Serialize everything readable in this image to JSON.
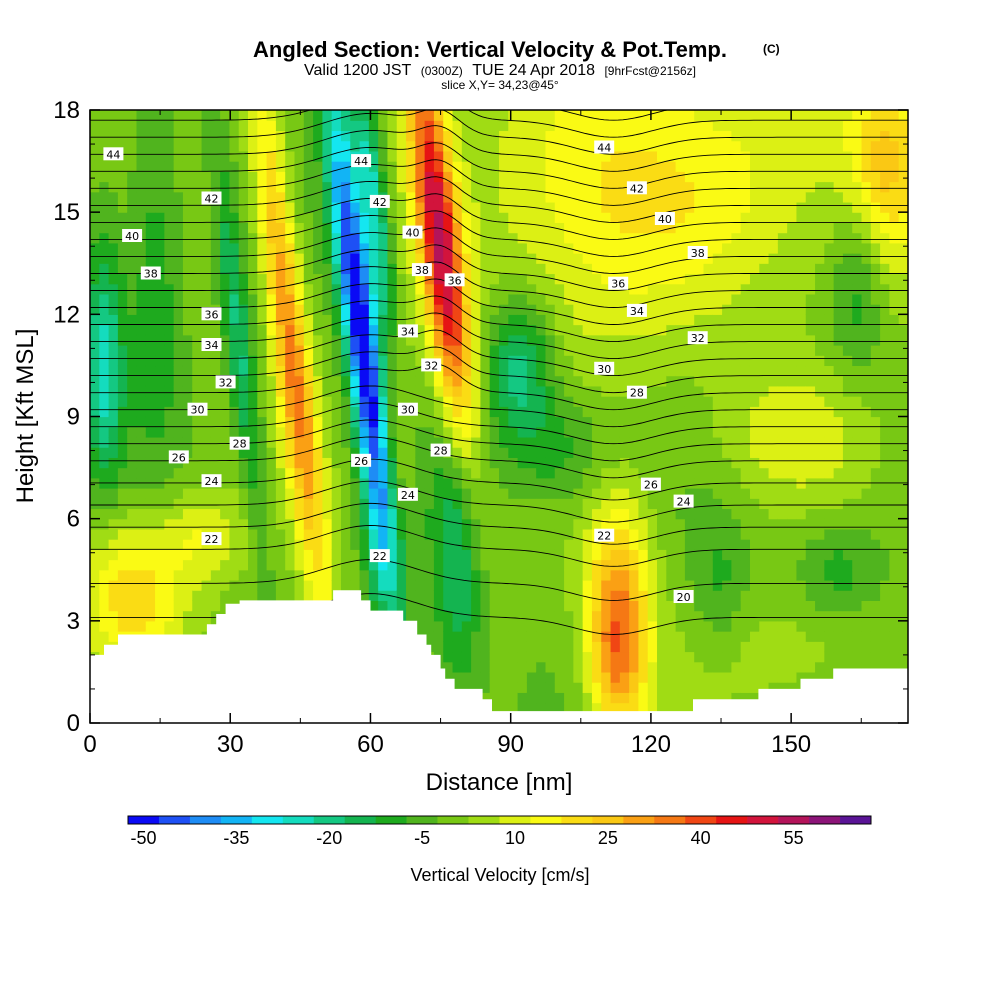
{
  "chart_data": {
    "type": "heatmap",
    "title": "Angled Section: Vertical Velocity & Pot.Temp.",
    "title_units": "(C)",
    "subtitle": {
      "prefix": "Valid 1200 JST",
      "utc": "(0300Z)",
      "date": "TUE 24 Apr 2018",
      "forecast": "[9hrFcst@2156z]"
    },
    "slice_label": "slice X,Y= 34,23@45°",
    "xlabel": "Distance [nm]",
    "ylabel": "Height [Kft MSL]",
    "xlim": [
      0,
      175
    ],
    "ylim": [
      0,
      18
    ],
    "x_ticks": [
      "0",
      "30",
      "60",
      "90",
      "120",
      "150"
    ],
    "y_ticks": [
      "0",
      "3",
      "6",
      "9",
      "12",
      "15",
      "18"
    ],
    "grid": false,
    "colorbar": {
      "title": "Vertical Velocity [cm/s]",
      "levels": [
        -50,
        -45,
        -40,
        -35,
        -30,
        -25,
        -20,
        -15,
        -10,
        -5,
        0,
        5,
        10,
        15,
        20,
        25,
        30,
        35,
        40,
        45,
        50,
        55,
        60,
        65
      ],
      "colors": [
        "#0a0af5",
        "#1e50f5",
        "#1e8cf5",
        "#12b4f5",
        "#14e6f0",
        "#14dcbe",
        "#14c882",
        "#14b450",
        "#1eaa1e",
        "#50b41e",
        "#78c814",
        "#a0dc14",
        "#dcf014",
        "#fafa14",
        "#fadc14",
        "#fac814",
        "#faa014",
        "#f57814",
        "#f04614",
        "#e61414",
        "#d2143c",
        "#b4145a",
        "#8c1478",
        "#5a1496"
      ],
      "tick_labels": [
        "-50",
        "-35",
        "-20",
        "-5",
        "10",
        "25",
        "40",
        "55"
      ]
    },
    "series": [
      {
        "name": "Potential temperature contours (C)",
        "values": [
          20,
          22,
          24,
          26,
          28,
          30,
          32,
          34,
          36,
          38,
          40,
          42,
          44
        ]
      }
    ],
    "contour_labels": [
      {
        "text": "44",
        "x": 5,
        "y": 16.7
      },
      {
        "text": "42",
        "x": 26,
        "y": 15.4
      },
      {
        "text": "40",
        "x": 9,
        "y": 14.3
      },
      {
        "text": "38",
        "x": 13,
        "y": 13.2
      },
      {
        "text": "36",
        "x": 26,
        "y": 12.0
      },
      {
        "text": "34",
        "x": 26,
        "y": 11.1
      },
      {
        "text": "32",
        "x": 29,
        "y": 10.0
      },
      {
        "text": "30",
        "x": 23,
        "y": 9.2
      },
      {
        "text": "28",
        "x": 32,
        "y": 8.2
      },
      {
        "text": "26",
        "x": 19,
        "y": 7.8
      },
      {
        "text": "24",
        "x": 26,
        "y": 7.1
      },
      {
        "text": "22",
        "x": 26,
        "y": 5.4
      },
      {
        "text": "44",
        "x": 58,
        "y": 16.5
      },
      {
        "text": "42",
        "x": 62,
        "y": 15.3
      },
      {
        "text": "40",
        "x": 69,
        "y": 14.4
      },
      {
        "text": "38",
        "x": 71,
        "y": 13.3
      },
      {
        "text": "36",
        "x": 78,
        "y": 13.0
      },
      {
        "text": "34",
        "x": 68,
        "y": 11.5
      },
      {
        "text": "32",
        "x": 73,
        "y": 10.5
      },
      {
        "text": "30",
        "x": 68,
        "y": 9.2
      },
      {
        "text": "28",
        "x": 75,
        "y": 8.0
      },
      {
        "text": "26",
        "x": 58,
        "y": 7.7
      },
      {
        "text": "24",
        "x": 68,
        "y": 6.7
      },
      {
        "text": "22",
        "x": 62,
        "y": 4.9
      },
      {
        "text": "44",
        "x": 110,
        "y": 16.9
      },
      {
        "text": "42",
        "x": 117,
        "y": 15.7
      },
      {
        "text": "40",
        "x": 123,
        "y": 14.8
      },
      {
        "text": "38",
        "x": 130,
        "y": 13.8
      },
      {
        "text": "36",
        "x": 113,
        "y": 12.9
      },
      {
        "text": "34",
        "x": 117,
        "y": 12.1
      },
      {
        "text": "32",
        "x": 130,
        "y": 11.3
      },
      {
        "text": "30",
        "x": 110,
        "y": 10.4
      },
      {
        "text": "28",
        "x": 117,
        "y": 9.7
      },
      {
        "text": "26",
        "x": 120,
        "y": 7.0
      },
      {
        "text": "24",
        "x": 127,
        "y": 6.5
      },
      {
        "text": "22",
        "x": 110,
        "y": 5.5
      },
      {
        "text": "20",
        "x": 127,
        "y": 3.7
      }
    ],
    "terrain": [
      [
        0,
        2.0
      ],
      [
        3,
        2.0
      ],
      [
        3,
        2.3
      ],
      [
        6,
        2.3
      ],
      [
        6,
        2.6
      ],
      [
        25,
        2.6
      ],
      [
        25,
        2.9
      ],
      [
        27,
        2.9
      ],
      [
        27,
        3.2
      ],
      [
        29,
        3.2
      ],
      [
        29,
        3.5
      ],
      [
        32,
        3.5
      ],
      [
        32,
        3.6
      ],
      [
        52,
        3.6
      ],
      [
        52,
        3.9
      ],
      [
        58,
        3.9
      ],
      [
        58,
        3.6
      ],
      [
        60,
        3.6
      ],
      [
        60,
        3.3
      ],
      [
        64,
        3.3
      ],
      [
        67,
        3.3
      ],
      [
        67,
        3.0
      ],
      [
        70,
        3.0
      ],
      [
        70,
        2.6
      ],
      [
        72,
        2.6
      ],
      [
        72,
        2.3
      ],
      [
        73,
        2.3
      ],
      [
        73,
        2.0
      ],
      [
        75,
        2.0
      ],
      [
        75,
        1.6
      ],
      [
        76,
        1.6
      ],
      [
        76,
        1.3
      ],
      [
        78,
        1.3
      ],
      [
        78,
        1.0
      ],
      [
        84,
        1.0
      ],
      [
        84,
        0.7
      ],
      [
        86,
        0.7
      ],
      [
        86,
        0.35
      ],
      [
        129,
        0.35
      ],
      [
        129,
        0.7
      ],
      [
        143,
        0.7
      ],
      [
        143,
        1.0
      ],
      [
        152,
        1.0
      ],
      [
        152,
        1.3
      ],
      [
        159,
        1.3
      ],
      [
        159,
        1.6
      ],
      [
        175,
        1.6
      ]
    ],
    "velocity_features": [
      {
        "x": 58,
        "y": 11.5,
        "sx": 2.6,
        "sy": 5.0,
        "tilt": -0.22,
        "amp": -55
      },
      {
        "x": 61,
        "y": 15,
        "sx": 2.0,
        "sy": 3.0,
        "tilt": -0.22,
        "amp": -25
      },
      {
        "x": 75,
        "y": 14,
        "sx": 3.2,
        "sy": 4.5,
        "tilt": -0.22,
        "amp": 50
      },
      {
        "x": 43,
        "y": 11,
        "sx": 2.8,
        "sy": 5.5,
        "tilt": -0.22,
        "amp": 35
      },
      {
        "x": 113,
        "y": 3.5,
        "sx": 5.0,
        "sy": 2.2,
        "tilt": 0,
        "amp": 30
      },
      {
        "x": 113,
        "y": 1.5,
        "sx": 4.0,
        "sy": 1.5,
        "tilt": 0,
        "amp": 15
      },
      {
        "x": 9,
        "y": 3.8,
        "sx": 8,
        "sy": 1.6,
        "tilt": 0,
        "amp": 22
      },
      {
        "x": 24,
        "y": 5.5,
        "sx": 6,
        "sy": 1.0,
        "tilt": 0,
        "amp": 12
      },
      {
        "x": 105,
        "y": 15.5,
        "sx": 16,
        "sy": 3.5,
        "tilt": 0,
        "amp": 14
      },
      {
        "x": 140,
        "y": 16,
        "sx": 25,
        "sy": 3,
        "tilt": 0,
        "amp": 12
      },
      {
        "x": 170,
        "y": 16.5,
        "sx": 6,
        "sy": 2,
        "tilt": 0,
        "amp": 20
      },
      {
        "x": 164,
        "y": 13,
        "sx": 4,
        "sy": 2,
        "tilt": 0,
        "amp": -12
      },
      {
        "x": 65,
        "y": 7.5,
        "sx": 2.5,
        "sy": 3,
        "tilt": 0,
        "amp": 15
      },
      {
        "x": 63,
        "y": 5,
        "sx": 3,
        "sy": 2,
        "tilt": 0,
        "amp": -15
      },
      {
        "x": 79,
        "y": 5,
        "sx": 4,
        "sy": 3,
        "tilt": 0,
        "amp": -18
      },
      {
        "x": 92,
        "y": 10.5,
        "sx": 5,
        "sy": 1.5,
        "tilt": 0,
        "amp": -22
      },
      {
        "x": 14,
        "y": 13,
        "sx": 4,
        "sy": 3.5,
        "tilt": 0,
        "amp": -12
      },
      {
        "x": 3,
        "y": 10.5,
        "sx": 3,
        "sy": 2.5,
        "tilt": 0,
        "amp": -25
      },
      {
        "x": 32,
        "y": 11,
        "sx": 2,
        "sy": 4,
        "tilt": -0.2,
        "amp": -18
      },
      {
        "x": 150,
        "y": 8.5,
        "sx": 12,
        "sy": 1.3,
        "tilt": 0,
        "amp": 10
      },
      {
        "x": 150,
        "y": 2.0,
        "sx": 15,
        "sy": 1.2,
        "tilt": 0,
        "amp": 6
      },
      {
        "x": 160,
        "y": 4.5,
        "sx": 6,
        "sy": 1.0,
        "tilt": 0,
        "amp": -10
      },
      {
        "x": 135,
        "y": 4,
        "sx": 4,
        "sy": 1.5,
        "tilt": 0,
        "amp": -8
      },
      {
        "x": 100,
        "y": 8,
        "sx": 8,
        "sy": 1.2,
        "tilt": 0,
        "amp": -12
      }
    ]
  }
}
